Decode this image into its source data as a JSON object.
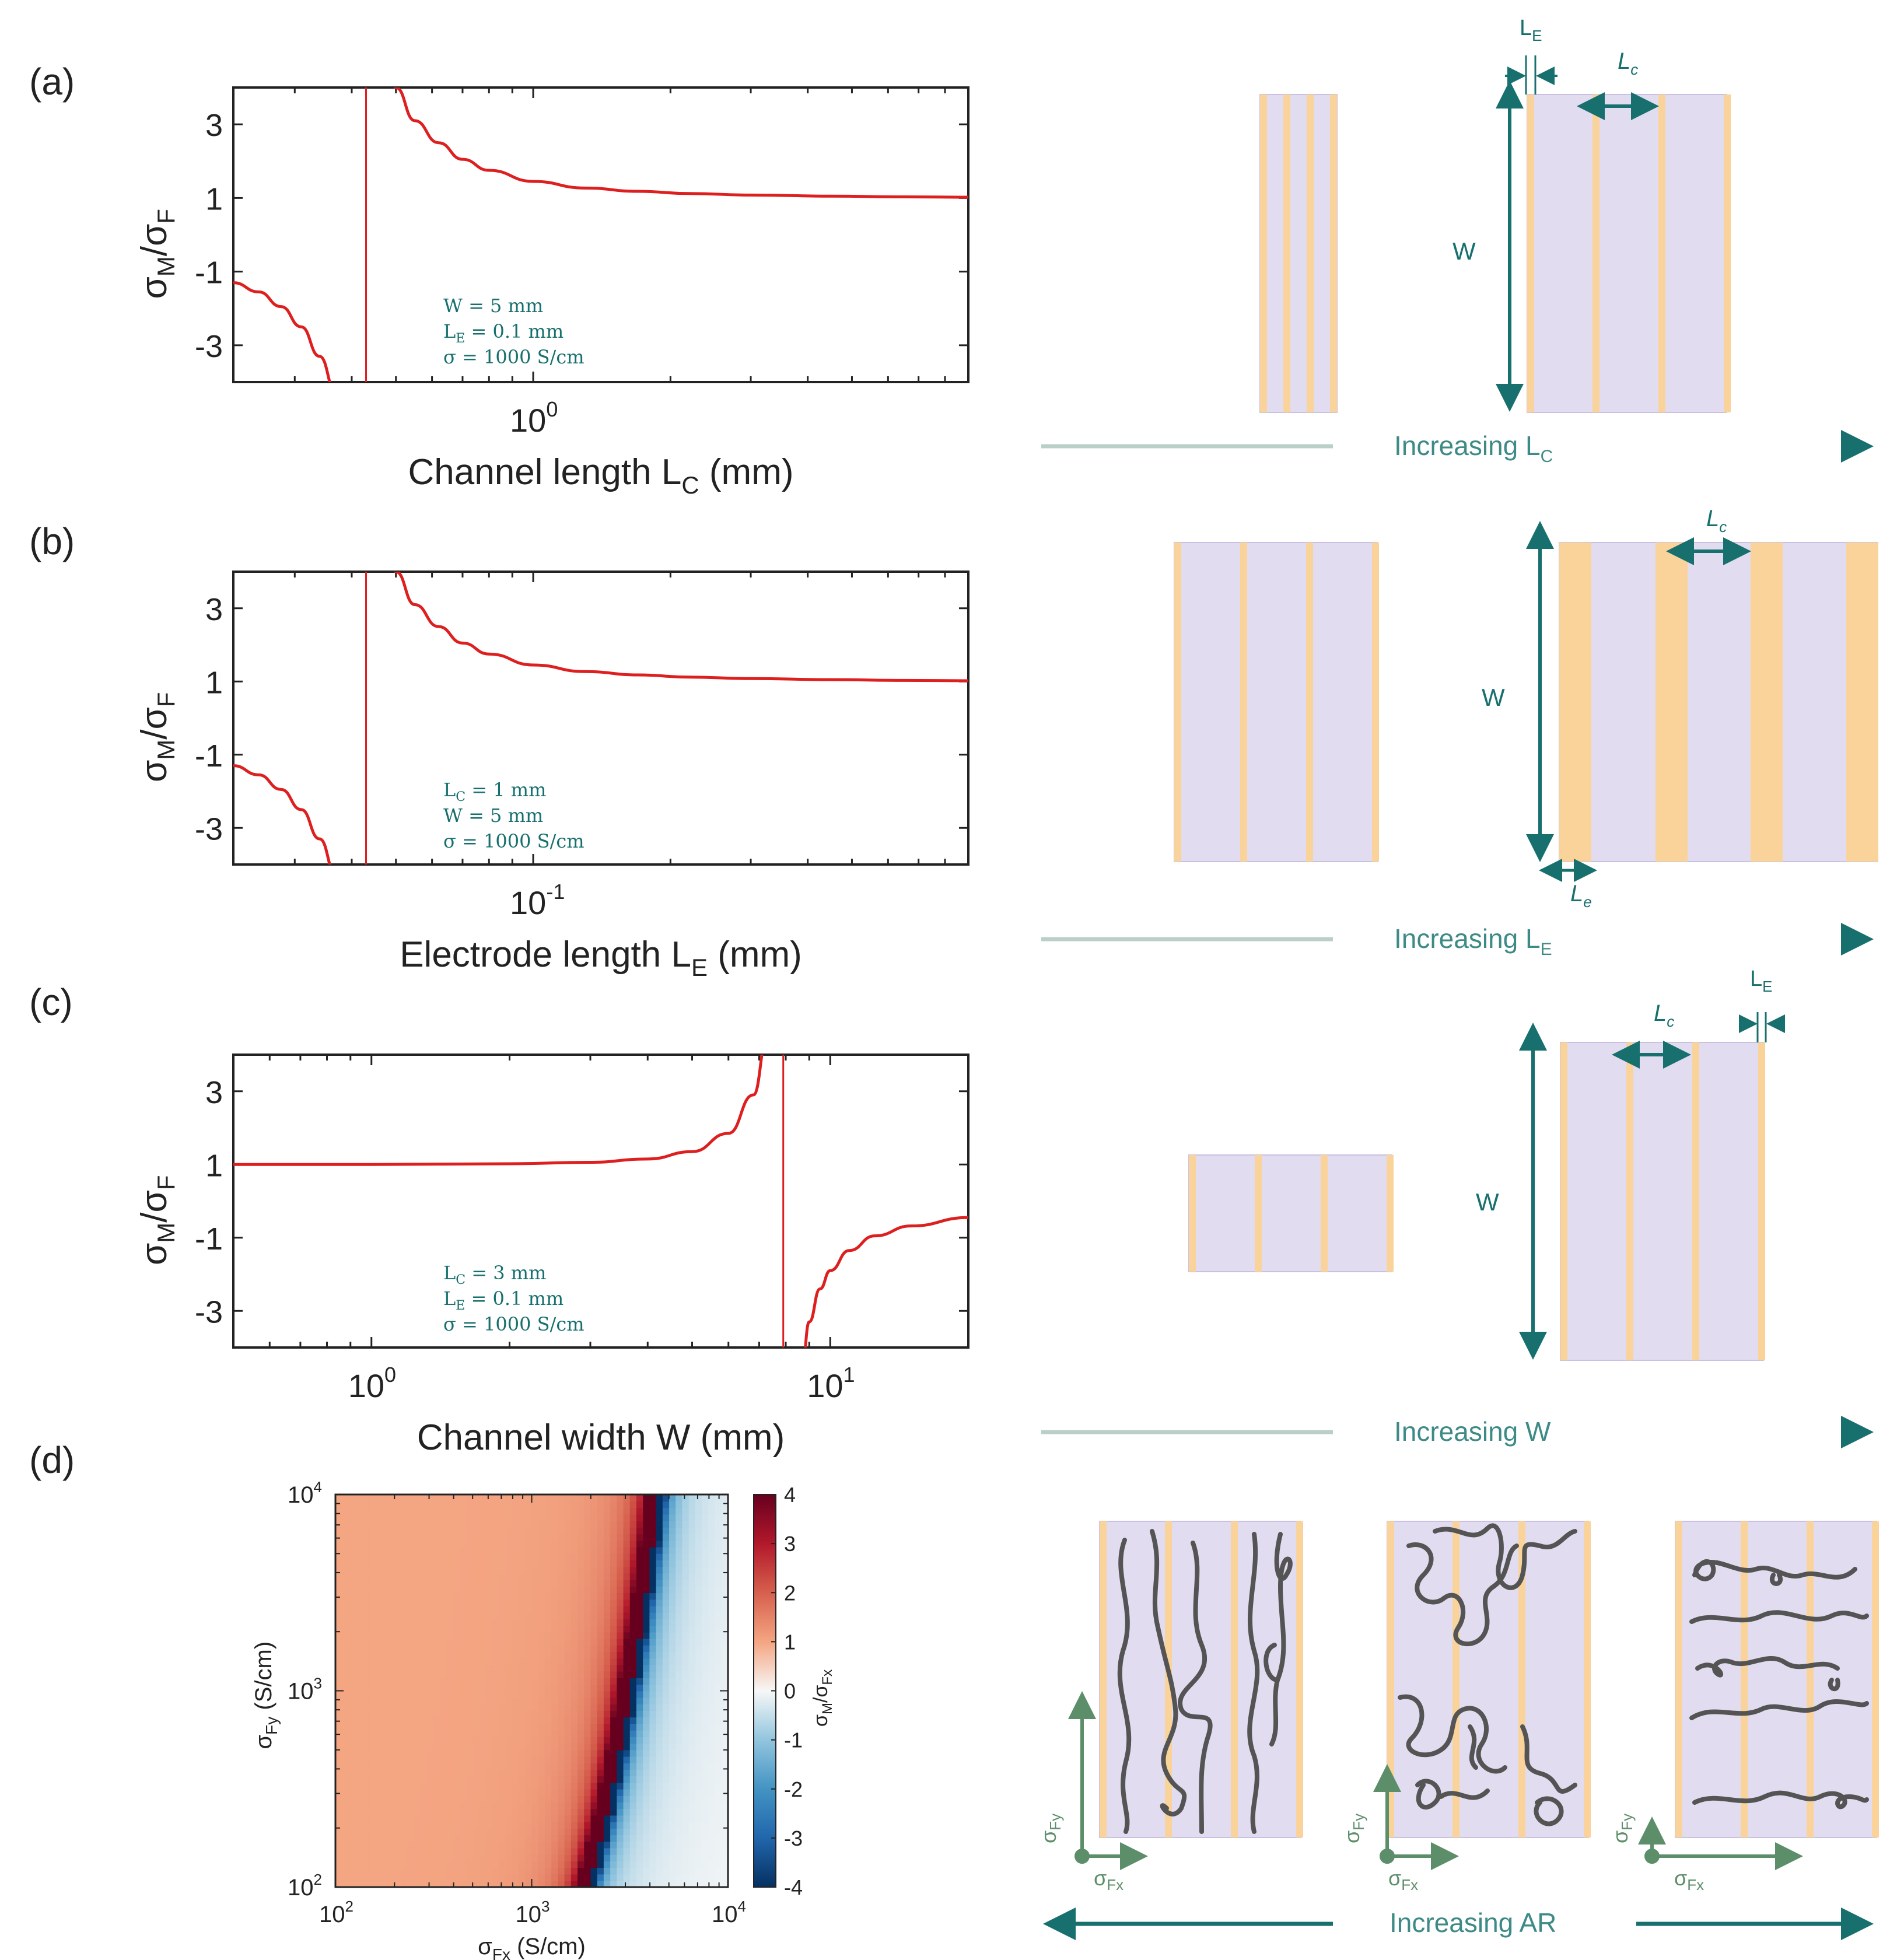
{
  "figure": {
    "colors": {
      "curve": "#dd1f1f",
      "electrode": "#f9d39a",
      "channel": "#e2dcf0",
      "channel_edge": "#c9c0e3",
      "teal": "#17706e",
      "teal_light": "#b9cfc8",
      "fiber": "#545454",
      "axis_green": "#5d8e6a"
    }
  },
  "panel_labels": [
    "(a)",
    "(b)",
    "(c)",
    "(d)"
  ],
  "ytick_labels": [
    "3",
    "1",
    "-1",
    "-3"
  ],
  "chart_data": [
    {
      "id": "a",
      "type": "line",
      "scale": "log-x",
      "ylabel": "σM/σF",
      "xlabel": "Channel length LC (mm)",
      "xlabel_main": "Channel  length  L",
      "xlabel_sub": "C",
      "xlabel_tail": " (mm)",
      "x_range": [
        0.22,
        9.0
      ],
      "ylim": [
        -4,
        4
      ],
      "asymptote_x": 0.43,
      "xtick_major": {
        "value": 1,
        "base": "10",
        "exp": "0"
      },
      "series": [
        {
          "name": "σM/σF",
          "x": [
            0.22,
            0.25,
            0.28,
            0.31,
            0.34,
            0.37,
            0.4,
            0.43,
            0.47,
            0.5,
            0.55,
            0.62,
            0.7,
            0.8,
            1,
            1.3,
            1.7,
            2.2,
            3,
            4.5,
            6.5,
            9
          ],
          "y": [
            -1.3,
            -1.55,
            -1.95,
            -2.5,
            -3.3,
            -4.3,
            -6,
            -40,
            5.6,
            4.0,
            3.1,
            2.5,
            2.05,
            1.75,
            1.45,
            1.27,
            1.18,
            1.12,
            1.08,
            1.05,
            1.03,
            1.02
          ]
        }
      ],
      "annotations": [
        {
          "main": "W = 5 mm",
          "sub": "",
          "tail": ""
        },
        {
          "main": "L",
          "sub": "E",
          "tail": " = 0.1 mm"
        },
        {
          "main": "σ = 1000 S/cm",
          "sub": "",
          "tail": ""
        }
      ]
    },
    {
      "id": "b",
      "type": "line",
      "scale": "log-x",
      "ylabel": "σM/σF",
      "xlabel": "Electrode length LE (mm)",
      "xlabel_main": "Electrode  length  L",
      "xlabel_sub": "E",
      "xlabel_tail": " (mm)",
      "x_range": [
        0.022,
        0.9
      ],
      "ylim": [
        -4,
        4
      ],
      "asymptote_x": 0.043,
      "xtick_major": {
        "value": 0.1,
        "base": "10",
        "exp": "-1"
      },
      "series": [
        {
          "name": "σM/σF",
          "x": [
            0.022,
            0.025,
            0.028,
            0.031,
            0.034,
            0.037,
            0.04,
            0.043,
            0.047,
            0.05,
            0.055,
            0.062,
            0.07,
            0.08,
            0.1,
            0.13,
            0.17,
            0.22,
            0.3,
            0.45,
            0.65,
            0.9
          ],
          "y": [
            -1.3,
            -1.55,
            -1.95,
            -2.5,
            -3.3,
            -4.3,
            -6,
            -40,
            5.6,
            4.0,
            3.1,
            2.5,
            2.05,
            1.75,
            1.45,
            1.27,
            1.18,
            1.12,
            1.08,
            1.05,
            1.03,
            1.02
          ]
        }
      ],
      "annotations": [
        {
          "main": "L",
          "sub": "C",
          "tail": " = 1 mm"
        },
        {
          "main": "W = 5 mm",
          "sub": "",
          "tail": ""
        },
        {
          "main": "σ = 1000 S/cm",
          "sub": "",
          "tail": ""
        }
      ]
    },
    {
      "id": "c",
      "type": "line",
      "scale": "log-x",
      "ylabel": "σM/σF",
      "xlabel": "Channel width W (mm)",
      "xlabel_main": "Channel width W (mm)",
      "xlabel_sub": "",
      "xlabel_tail": "",
      "x_range": [
        0.5,
        20
      ],
      "ylim": [
        -4,
        4
      ],
      "asymptote_x": 7.9,
      "xtick_major": [
        {
          "value": 1,
          "base": "10",
          "exp": "0"
        },
        {
          "value": 10,
          "base": "10",
          "exp": "1"
        }
      ],
      "series": [
        {
          "name": "σM/σF",
          "x": [
            0.5,
            1,
            2,
            3,
            4,
            5,
            6,
            6.8,
            7.3,
            7.6,
            7.9,
            8.1,
            8.4,
            8.7,
            9,
            9.5,
            10,
            11,
            12.5,
            15,
            20
          ],
          "y": [
            1.0,
            1.0,
            1.02,
            1.06,
            1.15,
            1.35,
            1.85,
            2.9,
            4.5,
            8,
            40,
            -20,
            -6.5,
            -4.4,
            -3.3,
            -2.4,
            -1.9,
            -1.35,
            -0.95,
            -0.68,
            -0.45
          ]
        }
      ],
      "annotations": [
        {
          "main": "L",
          "sub": "C",
          "tail": " = 3 mm"
        },
        {
          "main": "L",
          "sub": "E",
          "tail": " = 0.1 mm"
        },
        {
          "main": "σ = 1000 S/cm",
          "sub": "",
          "tail": ""
        }
      ]
    },
    {
      "id": "d",
      "type": "heatmap",
      "xlabel": "σFx (S/cm)",
      "ylabel": "σFy (S/cm)",
      "colorbar_label": "σM/σFx",
      "x_range": [
        100,
        10000
      ],
      "y_range": [
        100,
        10000
      ],
      "zlim": [
        -4,
        4
      ],
      "grid": [
        60,
        60
      ],
      "boundary_description": "pole where σFx ≈ 1950 + 1250·log10(σFy/100)",
      "xticks": [
        {
          "base": "10",
          "exp": "2"
        },
        {
          "base": "10",
          "exp": "3"
        },
        {
          "base": "10",
          "exp": "4"
        }
      ],
      "yticks": [
        {
          "base": "10",
          "exp": "4"
        },
        {
          "base": "10",
          "exp": "3"
        },
        {
          "base": "10",
          "exp": "2"
        }
      ],
      "colorbar_ticks": [
        "4",
        "3",
        "2",
        "1",
        "0",
        "-1",
        "-2",
        "-3",
        "-4"
      ]
    }
  ],
  "schematics": {
    "a_caption": {
      "main": "Increasing L",
      "sub": "C"
    },
    "b_caption": {
      "main": "Increasing L",
      "sub": "E"
    },
    "c_caption": {
      "main": "Increasing W",
      "sub": ""
    },
    "d_caption": {
      "main": "Increasing AR",
      "sub": ""
    },
    "labels": {
      "W": "W",
      "LE_main": "L",
      "LE_sub": "E",
      "Lc_main": "L",
      "Lc_sub": "c",
      "Le_main": "L",
      "Le_sub": "e",
      "sigma": "σ",
      "Fy": "Fy",
      "Fx": "Fx"
    }
  }
}
